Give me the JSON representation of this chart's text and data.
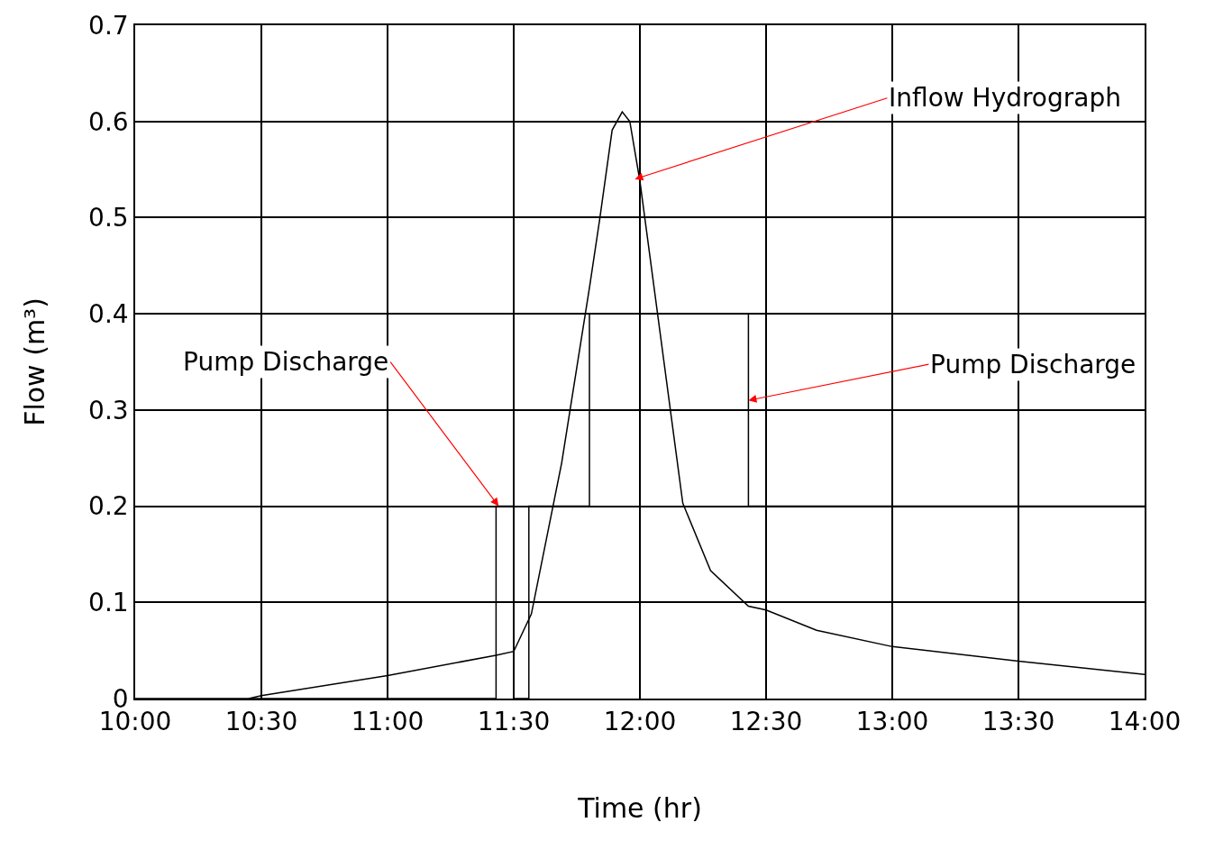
{
  "chart_data": {
    "type": "line",
    "xlabel": "Time (hr)",
    "ylabel": "Flow (m³)",
    "xlim": [
      10,
      14
    ],
    "xticks": [
      {
        "value": 10,
        "label": "10:00"
      },
      {
        "value": 10.5,
        "label": "10:30"
      },
      {
        "value": 11,
        "label": "11:00"
      },
      {
        "value": 11.5,
        "label": "11:30"
      },
      {
        "value": 12,
        "label": "12:00"
      },
      {
        "value": 12.5,
        "label": "12:30"
      },
      {
        "value": 13,
        "label": "13:00"
      },
      {
        "value": 13.5,
        "label": "13:30"
      },
      {
        "value": 14,
        "label": "14:00"
      }
    ],
    "ylim": [
      0,
      0.7
    ],
    "yticks": [
      0,
      0.1,
      0.2,
      0.3,
      0.4,
      0.5,
      0.6,
      0.7
    ],
    "grid": true,
    "series": [
      {
        "color": "#000000",
        "x": [
          10.45,
          10.5,
          11.0,
          11.43,
          11.5,
          11.57,
          11.69,
          11.8,
          11.84,
          11.89,
          11.93,
          11.96,
          12.0,
          12.07,
          12.17,
          12.28,
          12.43,
          12.5,
          12.7,
          13.0,
          13.5,
          14.0
        ],
        "values": [
          0,
          0.003,
          0.024,
          0.045,
          0.049,
          0.088,
          0.245,
          0.427,
          0.497,
          0.591,
          0.61,
          0.6,
          0.538,
          0.4,
          0.203,
          0.133,
          0.096,
          0.092,
          0.071,
          0.054,
          0.039,
          0.025
        ]
      },
      {
        "type": "step",
        "color": "#000000",
        "x": [
          10.0,
          11.43,
          11.5,
          11.56,
          11.8,
          12.43,
          14.0
        ],
        "values": [
          0,
          0.2,
          0,
          0.2,
          0.4,
          0.2,
          0.2
        ]
      }
    ],
    "annotations": [
      {
        "text": "Inflow Hydrograph",
        "x": 11.98,
        "y": 0.54
      },
      {
        "text": "Pump Discharge",
        "x": 11.44,
        "y": 0.2
      },
      {
        "text": "Pump Discharge",
        "x": 12.43,
        "y": 0.31
      }
    ]
  }
}
